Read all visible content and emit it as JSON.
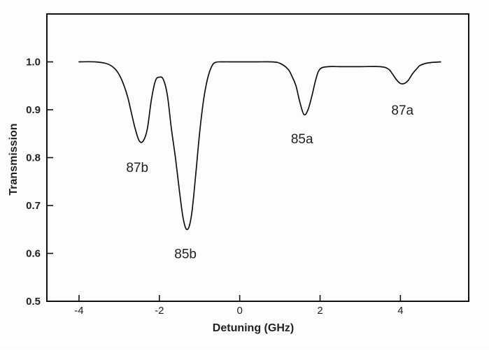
{
  "chart_data": {
    "type": "line",
    "title": "",
    "xlabel": "Detuning (GHz)",
    "ylabel": "Transmission",
    "xlim": [
      -4.8,
      5.7
    ],
    "ylim": [
      0.5,
      1.1
    ],
    "x_ticks": [
      -4,
      -2,
      0,
      2,
      4
    ],
    "x_tick_labels": [
      "-4",
      "-2",
      "0",
      "2",
      "4"
    ],
    "y_ticks": [
      0.5,
      0.6,
      0.7,
      0.8,
      0.9,
      1.0
    ],
    "y_tick_labels": [
      "0.5",
      "0.6",
      "0.7",
      "0.8",
      "0.9",
      "1.0"
    ],
    "grid": false,
    "legend": "none",
    "line_color": "#111111",
    "series": [
      {
        "x": [
          -4.0,
          -3.6,
          -3.3,
          -3.1,
          -2.95,
          -2.8,
          -2.7,
          -2.6,
          -2.5,
          -2.4,
          -2.3,
          -2.2,
          -2.1,
          -2.0,
          -1.9,
          -1.8,
          -1.7,
          -1.6,
          -1.5,
          -1.4,
          -1.3,
          -1.2,
          -1.1,
          -1.0,
          -0.9,
          -0.8,
          -0.7,
          -0.6,
          -0.4,
          -0.2,
          0.0,
          0.4,
          0.8,
          1.0,
          1.2,
          1.3,
          1.4,
          1.5,
          1.6,
          1.7,
          1.8,
          1.9,
          2.0,
          2.2,
          2.5,
          3.0,
          3.5,
          3.7,
          3.8,
          3.9,
          4.0,
          4.1,
          4.2,
          4.3,
          4.4,
          4.5,
          4.7,
          5.0
        ],
        "y": [
          1.0,
          1.0,
          0.996,
          0.985,
          0.965,
          0.93,
          0.895,
          0.86,
          0.835,
          0.835,
          0.86,
          0.92,
          0.96,
          0.968,
          0.963,
          0.93,
          0.86,
          0.8,
          0.73,
          0.67,
          0.65,
          0.68,
          0.76,
          0.85,
          0.92,
          0.965,
          0.99,
          0.999,
          1.0,
          1.0,
          1.0,
          1.0,
          1.0,
          0.997,
          0.985,
          0.97,
          0.95,
          0.915,
          0.89,
          0.9,
          0.93,
          0.965,
          0.985,
          0.99,
          0.99,
          0.99,
          0.99,
          0.985,
          0.975,
          0.963,
          0.955,
          0.955,
          0.962,
          0.975,
          0.985,
          0.993,
          0.998,
          1.0
        ]
      }
    ],
    "annotations": [
      {
        "text": "87b",
        "x": -2.55,
        "y": 0.78
      },
      {
        "text": "85b",
        "x": -1.35,
        "y": 0.6
      },
      {
        "text": "85a",
        "x": 1.55,
        "y": 0.84
      },
      {
        "text": "87a",
        "x": 4.05,
        "y": 0.9
      }
    ]
  }
}
